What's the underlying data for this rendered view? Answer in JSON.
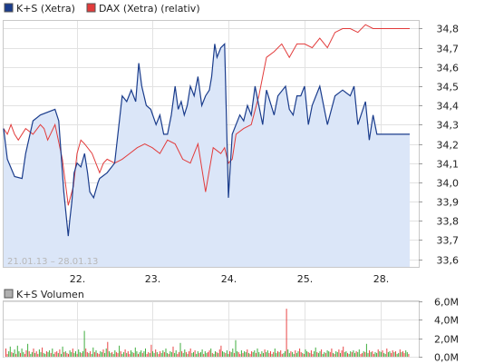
{
  "legend": [
    {
      "label": "K+S (Xetra)",
      "color": "#1a3c8c"
    },
    {
      "label": "DAX (Xetra) (relativ)",
      "color": "#e23b3b"
    }
  ],
  "date_range_label": "21.01.13 – 28.01.13",
  "volume_legend": {
    "label": "K+S Volumen",
    "color": "#b0b0b0"
  },
  "chart_data": [
    {
      "type": "line",
      "x_ticks": [
        "22.",
        "23.",
        "24.",
        "25.",
        "28."
      ],
      "y_ticks": [
        "33,6",
        "33,7",
        "33,8",
        "33,9",
        "34,0",
        "34,1",
        "34,2",
        "34,3",
        "34,4",
        "34,5",
        "34,6",
        "34,7",
        "34,8"
      ],
      "ylim": [
        33.56,
        34.84
      ],
      "grid": true,
      "area_fill": "#dbe6f8",
      "series": [
        {
          "name": "K+S (Xetra)",
          "color": "#1a3c8c",
          "fill": true,
          "x": [
            0.0,
            0.05,
            0.15,
            0.25,
            0.3,
            0.4,
            0.5,
            0.7,
            0.75,
            0.82,
            0.88,
            0.9,
            0.93,
            0.96,
            1.0,
            1.05,
            1.1,
            1.14,
            1.17,
            1.22,
            1.28,
            1.3,
            1.4,
            1.5,
            1.6,
            1.66,
            1.72,
            1.78,
            1.82,
            1.86,
            1.92,
            1.98,
            2.05,
            2.1,
            2.15,
            2.2,
            2.25,
            2.3,
            2.34,
            2.38,
            2.42,
            2.46,
            2.5,
            2.55,
            2.6,
            2.65,
            2.7,
            2.75,
            2.78,
            2.82,
            2.85,
            2.9,
            2.95,
            3.0,
            3.05,
            3.1,
            3.15,
            3.2,
            3.25,
            3.3,
            3.35,
            3.4,
            3.45,
            3.5,
            3.6,
            3.65,
            3.75,
            3.8,
            3.85,
            3.9,
            3.95,
            4.0,
            4.05,
            4.1,
            4.2,
            4.3,
            4.4,
            4.5,
            4.6,
            4.65,
            4.7,
            4.8,
            4.85,
            4.9,
            4.95,
            5.0
          ],
          "values": [
            34.28,
            34.12,
            34.03,
            34.02,
            34.15,
            34.32,
            34.35,
            34.38,
            34.32,
            33.95,
            33.72,
            33.8,
            33.9,
            34.05,
            34.1,
            34.08,
            34.15,
            34.05,
            33.95,
            33.92,
            34.0,
            34.02,
            34.05,
            34.1,
            34.45,
            34.42,
            34.48,
            34.42,
            34.62,
            34.5,
            34.4,
            34.38,
            34.3,
            34.35,
            34.25,
            34.25,
            34.35,
            34.5,
            34.38,
            34.42,
            34.35,
            34.4,
            34.5,
            34.45,
            34.55,
            34.4,
            34.45,
            34.48,
            34.55,
            34.72,
            34.65,
            34.7,
            34.72,
            33.92,
            34.25,
            34.3,
            34.35,
            34.32,
            34.4,
            34.35,
            34.5,
            34.4,
            34.3,
            34.48,
            34.35,
            34.45,
            34.5,
            34.38,
            34.35,
            34.45,
            34.45,
            34.5,
            34.3,
            34.4,
            34.5,
            34.3,
            34.45,
            34.48,
            34.45,
            34.5,
            34.3,
            34.42,
            34.22,
            34.35,
            34.25,
            34.25
          ]
        },
        {
          "name": "DAX (Xetra) (relativ)",
          "color": "#e23b3b",
          "fill": false,
          "x": [
            0.0,
            0.05,
            0.1,
            0.15,
            0.2,
            0.3,
            0.4,
            0.5,
            0.55,
            0.6,
            0.7,
            0.8,
            0.88,
            0.95,
            1.0,
            1.05,
            1.1,
            1.2,
            1.3,
            1.35,
            1.4,
            1.5,
            1.6,
            1.7,
            1.8,
            1.9,
            2.0,
            2.1,
            2.2,
            2.3,
            2.4,
            2.5,
            2.6,
            2.7,
            2.8,
            2.9,
            2.95,
            3.0,
            3.05,
            3.1,
            3.2,
            3.3,
            3.4,
            3.5,
            3.6,
            3.7,
            3.8,
            3.9,
            4.0,
            4.1,
            4.2,
            4.3,
            4.4,
            4.5,
            4.6,
            4.7,
            4.8,
            4.9,
            5.0
          ],
          "values": [
            34.28,
            34.25,
            34.3,
            34.25,
            34.22,
            34.28,
            34.25,
            34.3,
            34.28,
            34.22,
            34.3,
            34.12,
            33.88,
            33.98,
            34.15,
            34.22,
            34.2,
            34.15,
            34.05,
            34.1,
            34.12,
            34.1,
            34.12,
            34.15,
            34.18,
            34.2,
            34.18,
            34.15,
            34.22,
            34.2,
            34.12,
            34.1,
            34.2,
            33.95,
            34.18,
            34.15,
            34.18,
            34.1,
            34.12,
            34.25,
            34.28,
            34.3,
            34.45,
            34.65,
            34.68,
            34.72,
            34.65,
            34.72,
            34.72,
            34.7,
            34.75,
            34.7,
            34.78,
            34.8,
            34.8,
            34.78,
            34.82,
            34.8,
            34.8
          ]
        }
      ]
    },
    {
      "type": "bar",
      "title": "K+S Volumen",
      "y_ticks": [
        "0,0M",
        "2,0M",
        "4,0M",
        "6,0M"
      ],
      "ylim": [
        0,
        6.0
      ],
      "grid": true,
      "up_color": "#3fae3f",
      "down_color": "#e84545",
      "values": [
        0.9,
        0.3,
        0.6,
        1.1,
        0.5,
        0.4,
        0.8,
        0.3,
        1.2,
        0.6,
        0.4,
        0.9,
        0.5,
        0.3,
        0.7,
        1.4,
        0.6,
        0.3,
        0.5,
        0.9,
        0.4,
        0.6,
        0.3,
        0.8,
        0.5,
        1.0,
        0.4,
        0.3,
        0.6,
        0.5,
        0.7,
        0.4,
        0.9,
        0.3,
        0.5,
        0.6,
        0.4,
        0.8,
        0.3,
        1.1,
        0.5,
        0.6,
        0.4,
        0.3,
        0.7,
        0.5,
        0.9,
        0.4,
        0.6,
        0.3,
        0.8,
        0.5,
        0.4,
        0.6,
        2.8,
        0.9,
        0.5,
        0.4,
        0.6,
        0.3,
        1.0,
        0.5,
        0.7,
        0.4,
        0.3,
        0.6,
        0.5,
        0.8,
        0.4,
        0.9,
        1.6,
        0.6,
        0.4,
        0.5,
        0.3,
        0.7,
        0.5,
        0.4,
        1.2,
        0.6,
        0.3,
        0.5,
        0.8,
        0.4,
        0.6,
        0.3,
        0.7,
        0.5,
        0.4,
        1.0,
        0.6,
        0.3,
        0.5,
        0.7,
        0.4,
        0.6,
        0.9,
        0.3,
        0.5,
        0.4,
        1.3,
        0.6,
        0.4,
        0.8,
        0.5,
        0.3,
        0.6,
        0.4,
        0.7,
        0.5,
        0.9,
        0.4,
        0.3,
        0.6,
        0.5,
        1.1,
        0.4,
        0.7,
        0.3,
        0.5,
        1.5,
        0.6,
        0.4,
        0.8,
        0.5,
        0.3,
        0.6,
        0.9,
        0.4,
        0.5,
        0.7,
        0.3,
        0.6,
        0.4,
        0.5,
        0.8,
        0.3,
        0.6,
        0.4,
        0.5,
        0.7,
        0.9,
        0.4,
        0.3,
        0.6,
        0.5,
        0.4,
        0.8,
        1.2,
        0.6,
        0.5,
        0.4,
        0.7,
        0.3,
        0.6,
        0.5,
        0.9,
        0.4,
        1.8,
        0.6,
        0.5,
        0.3,
        0.7,
        0.4,
        0.6,
        0.5,
        0.8,
        0.4,
        0.3,
        0.6,
        0.5,
        0.7,
        0.4,
        0.9,
        0.5,
        0.3,
        0.6,
        0.4,
        0.8,
        0.5,
        0.7,
        0.4,
        0.6,
        0.3,
        0.5,
        0.9,
        0.4,
        0.6,
        0.5,
        0.7,
        0.3,
        0.4,
        0.6,
        5.2,
        0.8,
        0.4,
        0.6,
        0.5,
        0.3,
        0.7,
        0.4,
        0.6,
        0.9,
        0.5,
        0.4,
        0.3,
        0.8,
        0.6,
        0.5,
        0.4,
        0.7,
        0.3,
        0.6,
        1.0,
        0.5,
        0.4,
        0.6,
        0.8,
        0.3,
        0.5,
        0.4,
        0.7,
        0.6,
        0.5,
        0.9,
        0.4,
        0.3,
        0.6,
        0.5,
        0.8,
        0.4,
        0.7,
        1.1,
        0.5,
        0.6,
        0.4,
        0.3,
        0.6,
        0.5,
        0.7,
        0.4,
        0.6,
        0.5,
        0.8,
        0.3,
        0.4,
        0.6,
        0.5,
        1.4,
        0.4,
        0.7,
        0.5,
        0.6,
        0.3,
        0.5,
        0.4,
        0.8,
        0.6,
        0.5,
        0.7,
        0.4,
        0.3,
        0.9,
        0.5,
        0.6,
        0.4,
        0.7,
        0.5,
        0.6,
        0.3,
        0.4,
        0.8,
        0.5,
        0.6,
        0.4,
        0.7,
        0.5,
        0.3
      ]
    }
  ]
}
